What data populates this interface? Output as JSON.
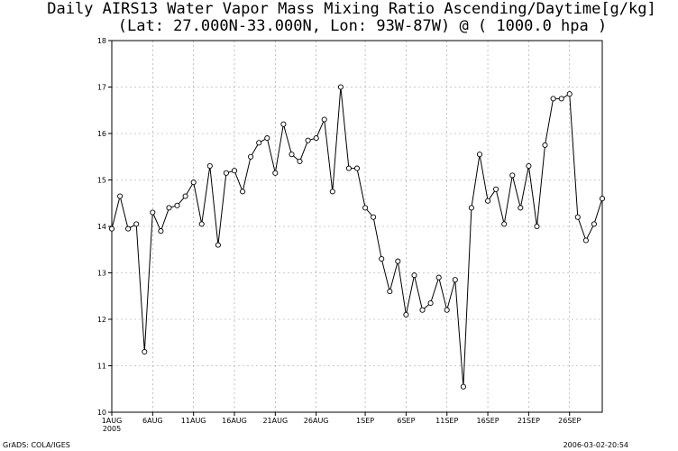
{
  "chart_data": {
    "type": "line",
    "title": "Daily AIRS13 Water Vapor Mass Mixing Ratio Ascending/Daytime[g/kg]",
    "subtitle": "(Lat: 27.000N-33.000N, Lon: 93W-87W) @ ( 1000.0 hpa )",
    "xlabel": "",
    "ylabel": "",
    "ylim": [
      10,
      18
    ],
    "yticks": [
      "10",
      "11",
      "12",
      "13",
      "14",
      "15",
      "16",
      "17",
      "18"
    ],
    "xticks": [
      {
        "label": "1AUG",
        "sub": "2005",
        "day": 0
      },
      {
        "label": "6AUG",
        "day": 5
      },
      {
        "label": "11AUG",
        "day": 10
      },
      {
        "label": "16AUG",
        "day": 15
      },
      {
        "label": "21AUG",
        "day": 20
      },
      {
        "label": "26AUG",
        "day": 25
      },
      {
        "label": "1SEP",
        "day": 31
      },
      {
        "label": "6SEP",
        "day": 36
      },
      {
        "label": "11SEP",
        "day": 41
      },
      {
        "label": "16SEP",
        "day": 46
      },
      {
        "label": "21SEP",
        "day": 51
      },
      {
        "label": "26SEP",
        "day": 56
      }
    ],
    "xrange": [
      0,
      60
    ],
    "grid": true,
    "values": [
      13.95,
      14.65,
      13.95,
      14.05,
      11.3,
      14.3,
      13.9,
      14.4,
      14.45,
      14.65,
      14.95,
      14.05,
      15.3,
      13.6,
      15.15,
      15.2,
      14.75,
      15.5,
      15.8,
      15.9,
      15.15,
      16.2,
      15.55,
      15.4,
      15.85,
      15.9,
      16.3,
      14.75,
      17.0,
      15.25,
      15.25,
      14.4,
      14.2,
      13.3,
      12.6,
      13.25,
      12.1,
      12.95,
      12.2,
      12.35,
      12.9,
      12.2,
      12.85,
      10.55,
      14.4,
      15.55,
      14.55,
      14.8,
      14.05,
      15.1,
      14.4,
      15.3,
      14.0,
      15.75,
      16.75,
      16.75,
      16.85,
      14.2,
      13.7,
      14.05,
      14.6
    ]
  },
  "footer": {
    "left": "GrADS: COLA/IGES",
    "right": "2006-03-02-20:54"
  }
}
